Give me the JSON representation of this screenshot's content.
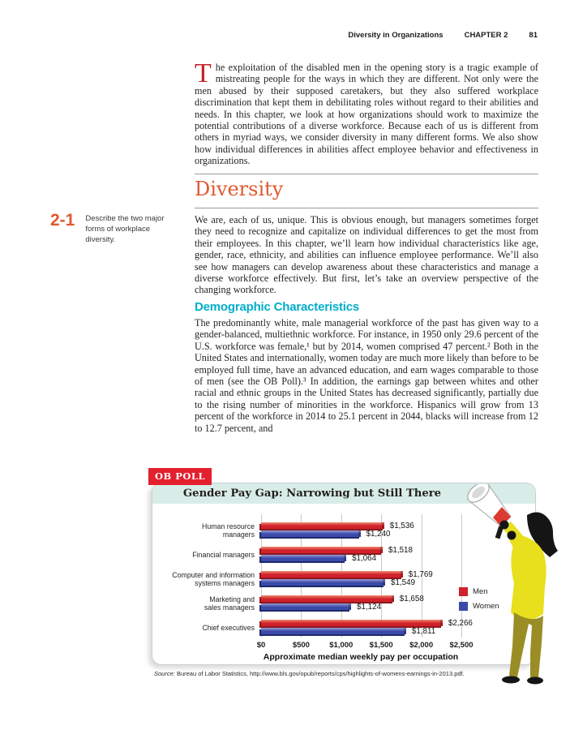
{
  "page": {
    "header": {
      "title": "Diversity in Organizations",
      "chapter": "CHAPTER 2",
      "page_number": "81"
    },
    "intro": {
      "drop_cap": "T",
      "text": "he exploitation of the disabled men in the opening story is a tragic example of mistreating people for the ways in which they are different. Not only were the men abused by their supposed caretakers, but they also suffered workplace discrimination that kept them in debilitating roles without regard to their abilities and needs. In this chapter, we look at how organizations should work to maximize the potential contributions of a diverse workforce. Because each of us is different from others in myriad ways, we consider diversity in many different forms. We also show how individual differences in abilities affect employee behavior and effectiveness in organizations."
    },
    "objective": {
      "number": "2-1",
      "text": "Describe the two major forms of workplace diversity."
    },
    "section": {
      "title": "Diversity",
      "body": "We are, each of us, unique. This is obvious enough, but managers sometimes forget they need to recognize and capitalize on individual differences to get the most from their employees. In this chapter, we’ll learn how individual characteristics like age, gender, race, ethnicity, and abilities can influence employee performance. We’ll also see how managers can develop awareness about these characteristics and manage a diverse workforce effectively. But first, let’s take an overview perspective of the changing workforce."
    },
    "subsection": {
      "title": "Demographic Characteristics",
      "body": "The predominantly white, male managerial workforce of the past has given way to a gender-balanced, multiethnic workforce. For instance, in 1950 only 29.6 percent of the U.S. workforce was female,¹ but by 2014, women comprised 47 percent.² Both in the United States and internationally, women today are much more likely than before to be employed full time, have an advanced education, and earn wages comparable to those of men (see the OB Poll).³ In addition, the earnings gap between whites and other racial and ethnic groups in the United States has decreased significantly, partially due to the rising number of minorities in the workforce. Hispanics will grow from 13 percent of the workforce in 2014 to 25.1 percent in 2044, blacks will increase from 12 to 12.7 percent, and"
    }
  },
  "ob_poll": {
    "tag": "OB POLL",
    "title": "Gender Pay Gap: Narrowing but Still There",
    "source_label": "Source:",
    "source_text": " Bureau of Labor Statistics, http://www.bls.gov/opub/reports/cps/highlights-of-womens-earnings-in-2013.pdf.",
    "colors": {
      "tag_red": "#e3202e",
      "band_teal": "#d8ede8",
      "heading_orange": "#e0592e",
      "subheading_teal": "#00aecb",
      "dropcap_red": "#c62127"
    }
  },
  "chart_data": {
    "type": "bar",
    "orientation": "horizontal",
    "title": "Gender Pay Gap: Narrowing but Still There",
    "categories": [
      "Human resource managers",
      "Financial managers",
      "Computer and information systems managers",
      "Marketing and sales managers",
      "Chief executives"
    ],
    "categories_display": [
      "Human resource\nmanagers",
      "Financial managers",
      "Computer and information\nsystems managers",
      "Marketing and\nsales managers",
      "Chief executives"
    ],
    "series": [
      {
        "name": "Men",
        "values": [
          1536,
          1518,
          1769,
          1658,
          2266
        ],
        "colors": {
          "light": "#ef8a70",
          "main": "#d0212a",
          "dark": "#8e181e"
        }
      },
      {
        "name": "Women",
        "values": [
          1240,
          1064,
          1549,
          1124,
          1811
        ],
        "colors": {
          "light": "#969cd4",
          "main": "#3a4aa8",
          "dark": "#1f2a6b"
        }
      }
    ],
    "value_labels": [
      [
        "$1,536",
        "$1,518",
        "$1,769",
        "$1,658",
        "$2,266"
      ],
      [
        "$1,240",
        "$1,064",
        "$1,549",
        "$1,124",
        "$1,811"
      ]
    ],
    "xlabel": "Approximate median weekly pay per occupation",
    "xticks": [
      "$0",
      "$500",
      "$1,000",
      "$1,500",
      "$2,000",
      "$2,500"
    ],
    "xlim": [
      0,
      2500
    ],
    "grid": true,
    "legend_position": "right"
  }
}
